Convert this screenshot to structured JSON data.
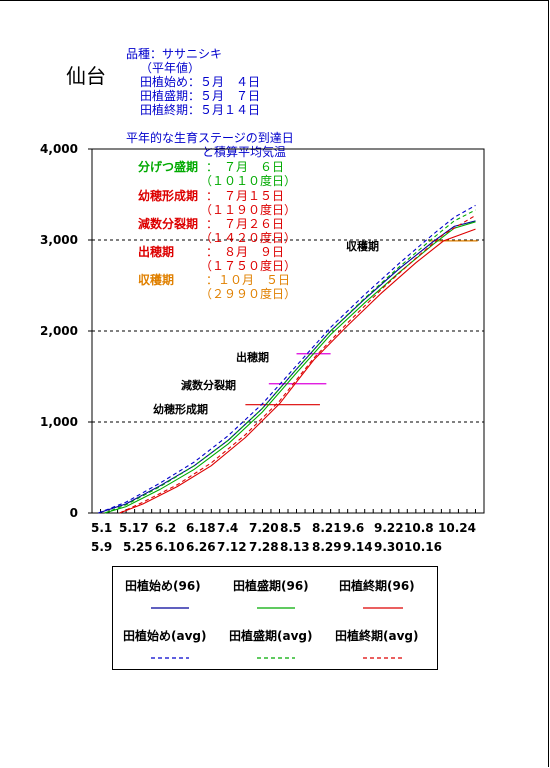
{
  "station": "仙台",
  "info": {
    "variety": "品種：ササニシキ",
    "avg_note": "（平年値）",
    "plant_start": "田植始め：５月　４日",
    "plant_peak": "田植盛期：５月　７日",
    "plant_end": "田植終期：５月１４日"
  },
  "subtitle_line1": "平年的な生育ステージの到達日",
  "subtitle_line2": "と積算平均気温",
  "stages": [
    {
      "name": "分げつ盛期",
      "date": "：　７月　６日",
      "acc": "（１０１０度日）",
      "color": "#00aa00"
    },
    {
      "name": "幼穂形成期",
      "date": "：　７月１５日",
      "acc": "（１１９０度日）",
      "color": "#dd0000"
    },
    {
      "name": "減数分裂期",
      "date": "：　７月２６日",
      "acc": "（１４２０度日）",
      "color": "#dd0000"
    },
    {
      "name": "出穂期",
      "date": "：　８月　９日",
      "acc": "（１７５０度日）",
      "color": "#dd0000"
    },
    {
      "name": "収穫期",
      "date": "：１０月　５日",
      "acc": "（２９９０度日）",
      "color": "#e08000"
    }
  ],
  "annotations": {
    "harvest": "収穫期",
    "heading": "出穂期",
    "meiosis": "減数分裂期",
    "panicle": "幼穂形成期"
  },
  "legend": {
    "start96": "田植始め(96)",
    "peak96": "田植盛期(96)",
    "end96": "田植終期(96)",
    "start_avg": "田植始め(avg)",
    "peak_avg": "田植盛期(avg)",
    "end_avg": "田植終期(avg)"
  },
  "colors": {
    "start": "#000099",
    "peak": "#00aa00",
    "end": "#dd0000",
    "dates": "#0000cc"
  },
  "chart_data": {
    "type": "line",
    "ylim": [
      0,
      4000
    ],
    "y_ticks": [
      "0",
      "1,000",
      "2,000",
      "3,000",
      "4,000"
    ],
    "x_ticks_top": [
      "5.1",
      "5.17",
      "6.2",
      "6.18",
      "7.4",
      "7.20",
      "8.5",
      "8.21",
      "9.6",
      "9.22",
      "10.8",
      "10.24"
    ],
    "x_ticks_bottom": [
      "5.9",
      "5.25",
      "6.10",
      "6.26",
      "7.12",
      "7.28",
      "8.13",
      "8.29",
      "9.14",
      "9.30",
      "10.16"
    ],
    "x_day_start": 0,
    "x_day_end": 184,
    "series": [
      {
        "name": "田植始め(96)",
        "style": "solid",
        "color": "#000099",
        "points": [
          [
            3,
            0
          ],
          [
            16,
            100
          ],
          [
            32,
            300
          ],
          [
            48,
            520
          ],
          [
            64,
            800
          ],
          [
            80,
            1150
          ],
          [
            96,
            1580
          ],
          [
            112,
            2000
          ],
          [
            128,
            2350
          ],
          [
            144,
            2680
          ],
          [
            160,
            2980
          ],
          [
            170,
            3150
          ],
          [
            180,
            3210
          ]
        ]
      },
      {
        "name": "田植盛期(96)",
        "style": "solid",
        "color": "#00aa00",
        "points": [
          [
            6,
            0
          ],
          [
            16,
            70
          ],
          [
            32,
            260
          ],
          [
            48,
            480
          ],
          [
            64,
            760
          ],
          [
            80,
            1110
          ],
          [
            96,
            1540
          ],
          [
            112,
            1960
          ],
          [
            128,
            2310
          ],
          [
            144,
            2640
          ],
          [
            160,
            2950
          ],
          [
            170,
            3130
          ],
          [
            180,
            3200
          ]
        ]
      },
      {
        "name": "田植終期(96)",
        "style": "solid",
        "color": "#dd0000",
        "points": [
          [
            13,
            0
          ],
          [
            24,
            100
          ],
          [
            40,
            290
          ],
          [
            56,
            520
          ],
          [
            72,
            830
          ],
          [
            88,
            1200
          ],
          [
            104,
            1680
          ],
          [
            120,
            2060
          ],
          [
            136,
            2420
          ],
          [
            152,
            2750
          ],
          [
            165,
            2990
          ],
          [
            180,
            3120
          ]
        ]
      },
      {
        "name": "田植始め(avg)",
        "style": "dashed",
        "color": "#0000cc",
        "points": [
          [
            3,
            0
          ],
          [
            16,
            120
          ],
          [
            32,
            330
          ],
          [
            48,
            560
          ],
          [
            64,
            850
          ],
          [
            80,
            1200
          ],
          [
            96,
            1620
          ],
          [
            112,
            2040
          ],
          [
            128,
            2400
          ],
          [
            144,
            2740
          ],
          [
            160,
            3060
          ],
          [
            170,
            3250
          ],
          [
            180,
            3380
          ]
        ]
      },
      {
        "name": "田植盛期(avg)",
        "style": "dashed",
        "color": "#00aa00",
        "points": [
          [
            6,
            0
          ],
          [
            16,
            90
          ],
          [
            32,
            290
          ],
          [
            48,
            520
          ],
          [
            64,
            800
          ],
          [
            80,
            1150
          ],
          [
            96,
            1580
          ],
          [
            112,
            2000
          ],
          [
            128,
            2360
          ],
          [
            144,
            2700
          ],
          [
            160,
            3020
          ],
          [
            170,
            3210
          ],
          [
            180,
            3330
          ]
        ]
      },
      {
        "name": "田植終期(avg)",
        "style": "dashed",
        "color": "#dd0000",
        "points": [
          [
            13,
            0
          ],
          [
            24,
            120
          ],
          [
            40,
            310
          ],
          [
            56,
            550
          ],
          [
            72,
            860
          ],
          [
            88,
            1230
          ],
          [
            104,
            1700
          ],
          [
            120,
            2090
          ],
          [
            136,
            2460
          ],
          [
            152,
            2800
          ],
          [
            165,
            3060
          ],
          [
            180,
            3270
          ]
        ]
      }
    ],
    "stage_markers": [
      {
        "name": "出穂期",
        "y": 1750,
        "x_from": 96,
        "x_to": 112,
        "color": "#dd00dd"
      },
      {
        "name": "減数分裂期",
        "y": 1420,
        "x_from": 83,
        "x_to": 110,
        "color": "#dd00dd"
      },
      {
        "name": "幼穂形成期",
        "y": 1190,
        "x_from": 72,
        "x_to": 107,
        "color": "#dd0000"
      },
      {
        "name": "収穫期",
        "y": 2990,
        "x_from": 158,
        "x_to": 181,
        "color": "#e08000"
      }
    ],
    "dashed_gridlines": [
      1000,
      2000,
      3000
    ]
  }
}
